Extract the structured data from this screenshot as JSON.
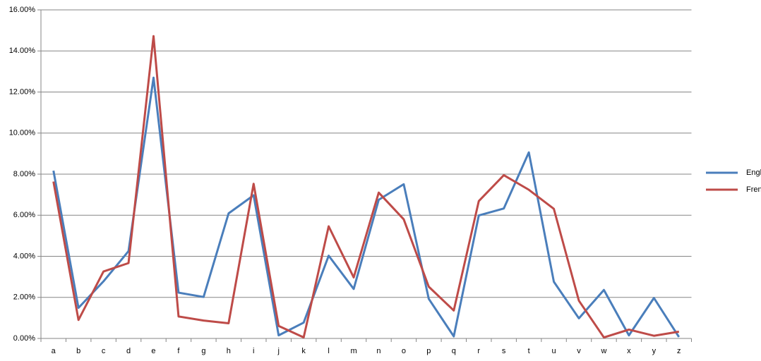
{
  "chart_data": {
    "type": "line",
    "categories": [
      "a",
      "b",
      "c",
      "d",
      "e",
      "f",
      "g",
      "h",
      "i",
      "j",
      "k",
      "l",
      "m",
      "n",
      "o",
      "p",
      "q",
      "r",
      "s",
      "t",
      "u",
      "v",
      "w",
      "x",
      "y",
      "z"
    ],
    "series": [
      {
        "name": "English",
        "color": "#4a7ebb",
        "values": [
          8.17,
          1.49,
          2.78,
          4.25,
          12.7,
          2.23,
          2.02,
          6.09,
          6.97,
          0.15,
          0.77,
          4.03,
          2.41,
          6.75,
          7.51,
          1.93,
          0.1,
          5.99,
          6.33,
          9.06,
          2.76,
          0.98,
          2.36,
          0.15,
          1.97,
          0.07
        ]
      },
      {
        "name": "French",
        "color": "#be4b48",
        "values": [
          7.64,
          0.9,
          3.26,
          3.67,
          14.72,
          1.07,
          0.87,
          0.74,
          7.53,
          0.61,
          0.05,
          5.46,
          2.97,
          7.1,
          5.8,
          2.52,
          1.36,
          6.69,
          7.95,
          7.24,
          6.31,
          1.84,
          0.05,
          0.43,
          0.13,
          0.33
        ]
      }
    ],
    "ylim": [
      0,
      16
    ],
    "yticks": [
      {
        "value": 0,
        "label": "0.00%"
      },
      {
        "value": 2,
        "label": "2.00%"
      },
      {
        "value": 4,
        "label": "4.00%"
      },
      {
        "value": 6,
        "label": "6.00%"
      },
      {
        "value": 8,
        "label": "8.00%"
      },
      {
        "value": 10,
        "label": "10.00%"
      },
      {
        "value": 12,
        "label": "12.00%"
      },
      {
        "value": 14,
        "label": "14.00%"
      },
      {
        "value": 16,
        "label": "16.00%"
      }
    ],
    "grid": true,
    "legend": "right"
  }
}
